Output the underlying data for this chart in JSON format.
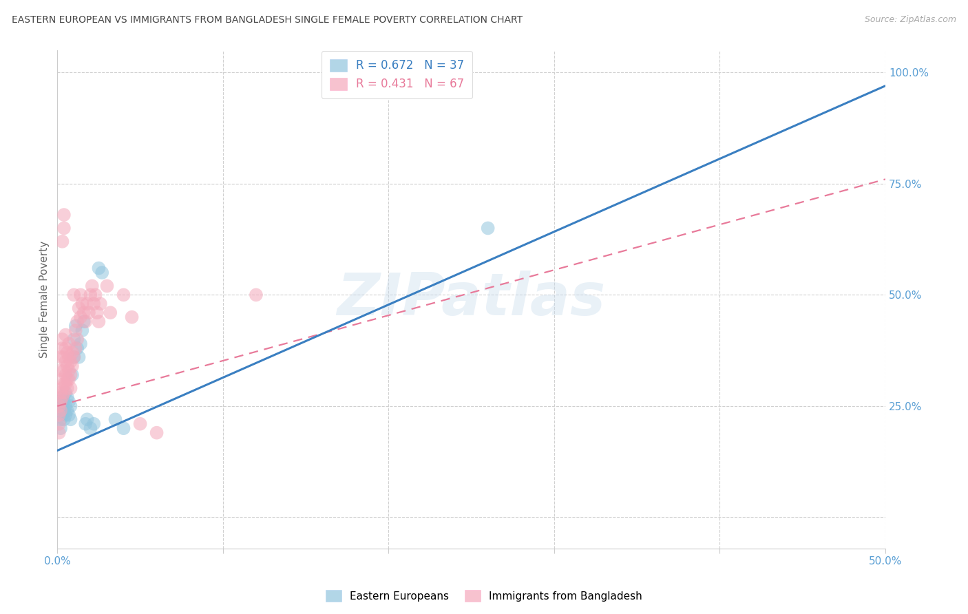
{
  "title": "EASTERN EUROPEAN VS IMMIGRANTS FROM BANGLADESH SINGLE FEMALE POVERTY CORRELATION CHART",
  "source": "Source: ZipAtlas.com",
  "ylabel": "Single Female Poverty",
  "y_ticks": [
    0.0,
    0.25,
    0.5,
    0.75,
    1.0
  ],
  "y_tick_labels": [
    "",
    "25.0%",
    "50.0%",
    "75.0%",
    "100.0%"
  ],
  "x_ticks": [
    0.0,
    0.1,
    0.2,
    0.3,
    0.4,
    0.5
  ],
  "x_tick_labels": [
    "0.0%",
    "",
    "",
    "",
    "",
    "50.0%"
  ],
  "xlim": [
    0.0,
    0.5
  ],
  "ylim": [
    -0.07,
    1.05
  ],
  "legend_top": [
    {
      "label": "R = 0.672   N = 37",
      "color": "#92c5de"
    },
    {
      "label": "R = 0.431   N = 67",
      "color": "#f4a9bb"
    }
  ],
  "legend_bottom": [
    "Eastern Europeans",
    "Immigrants from Bangladesh"
  ],
  "watermark": "ZIPatlas",
  "background_color": "#ffffff",
  "grid_color": "#d0d0d0",
  "blue_color": "#92c5de",
  "pink_color": "#f4a9bb",
  "blue_line_color": "#3a7fc1",
  "pink_line_color": "#e87a9a",
  "title_color": "#444444",
  "source_color": "#aaaaaa",
  "blue_line_x": [
    0.0,
    0.5
  ],
  "blue_line_y": [
    0.15,
    0.97
  ],
  "pink_line_x": [
    0.0,
    0.5
  ],
  "pink_line_y": [
    0.25,
    0.76
  ],
  "blue_scatter": [
    [
      0.001,
      0.26
    ],
    [
      0.002,
      0.24
    ],
    [
      0.002,
      0.22
    ],
    [
      0.002,
      0.2
    ],
    [
      0.003,
      0.27
    ],
    [
      0.003,
      0.25
    ],
    [
      0.003,
      0.23
    ],
    [
      0.004,
      0.26
    ],
    [
      0.004,
      0.24
    ],
    [
      0.004,
      0.22
    ],
    [
      0.005,
      0.28
    ],
    [
      0.005,
      0.25
    ],
    [
      0.005,
      0.23
    ],
    [
      0.006,
      0.27
    ],
    [
      0.006,
      0.24
    ],
    [
      0.007,
      0.26
    ],
    [
      0.007,
      0.23
    ],
    [
      0.008,
      0.25
    ],
    [
      0.008,
      0.22
    ],
    [
      0.009,
      0.32
    ],
    [
      0.01,
      0.36
    ],
    [
      0.01,
      0.4
    ],
    [
      0.011,
      0.43
    ],
    [
      0.012,
      0.38
    ],
    [
      0.013,
      0.36
    ],
    [
      0.014,
      0.39
    ],
    [
      0.015,
      0.42
    ],
    [
      0.016,
      0.44
    ],
    [
      0.017,
      0.21
    ],
    [
      0.018,
      0.22
    ],
    [
      0.02,
      0.2
    ],
    [
      0.022,
      0.21
    ],
    [
      0.025,
      0.56
    ],
    [
      0.027,
      0.55
    ],
    [
      0.035,
      0.22
    ],
    [
      0.04,
      0.2
    ],
    [
      0.26,
      0.65
    ]
  ],
  "pink_scatter": [
    [
      0.001,
      0.25
    ],
    [
      0.001,
      0.23
    ],
    [
      0.001,
      0.21
    ],
    [
      0.001,
      0.19
    ],
    [
      0.002,
      0.28
    ],
    [
      0.002,
      0.26
    ],
    [
      0.002,
      0.24
    ],
    [
      0.002,
      0.33
    ],
    [
      0.002,
      0.36
    ],
    [
      0.003,
      0.31
    ],
    [
      0.003,
      0.29
    ],
    [
      0.003,
      0.27
    ],
    [
      0.003,
      0.38
    ],
    [
      0.003,
      0.4
    ],
    [
      0.003,
      0.62
    ],
    [
      0.004,
      0.3
    ],
    [
      0.004,
      0.28
    ],
    [
      0.004,
      0.33
    ],
    [
      0.004,
      0.36
    ],
    [
      0.004,
      0.65
    ],
    [
      0.004,
      0.68
    ],
    [
      0.005,
      0.32
    ],
    [
      0.005,
      0.3
    ],
    [
      0.005,
      0.35
    ],
    [
      0.005,
      0.38
    ],
    [
      0.005,
      0.41
    ],
    [
      0.006,
      0.31
    ],
    [
      0.006,
      0.29
    ],
    [
      0.006,
      0.34
    ],
    [
      0.006,
      0.37
    ],
    [
      0.007,
      0.33
    ],
    [
      0.007,
      0.31
    ],
    [
      0.007,
      0.36
    ],
    [
      0.007,
      0.39
    ],
    [
      0.008,
      0.35
    ],
    [
      0.008,
      0.32
    ],
    [
      0.008,
      0.29
    ],
    [
      0.009,
      0.34
    ],
    [
      0.009,
      0.37
    ],
    [
      0.01,
      0.36
    ],
    [
      0.01,
      0.5
    ],
    [
      0.011,
      0.38
    ],
    [
      0.011,
      0.42
    ],
    [
      0.012,
      0.4
    ],
    [
      0.012,
      0.44
    ],
    [
      0.013,
      0.47
    ],
    [
      0.014,
      0.45
    ],
    [
      0.014,
      0.5
    ],
    [
      0.015,
      0.48
    ],
    [
      0.016,
      0.46
    ],
    [
      0.017,
      0.44
    ],
    [
      0.018,
      0.48
    ],
    [
      0.019,
      0.46
    ],
    [
      0.02,
      0.5
    ],
    [
      0.021,
      0.52
    ],
    [
      0.022,
      0.48
    ],
    [
      0.023,
      0.5
    ],
    [
      0.024,
      0.46
    ],
    [
      0.025,
      0.44
    ],
    [
      0.026,
      0.48
    ],
    [
      0.03,
      0.52
    ],
    [
      0.032,
      0.46
    ],
    [
      0.04,
      0.5
    ],
    [
      0.045,
      0.45
    ],
    [
      0.05,
      0.21
    ],
    [
      0.06,
      0.19
    ],
    [
      0.12,
      0.5
    ]
  ]
}
